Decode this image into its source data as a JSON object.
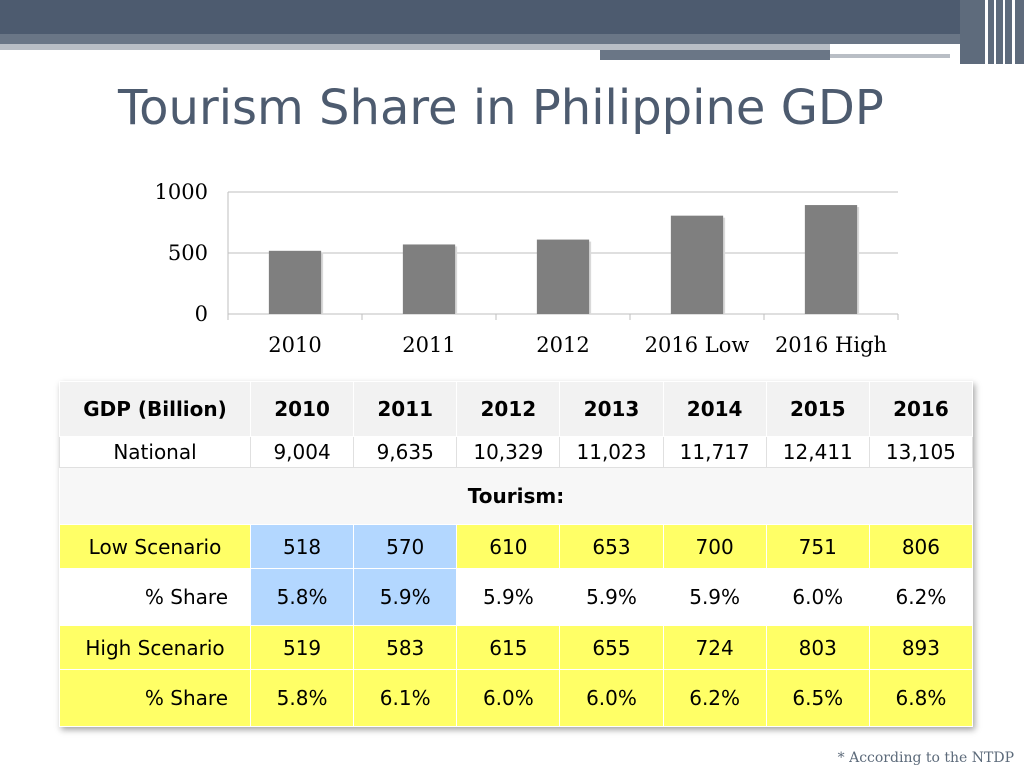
{
  "slide": {
    "title": "Tourism Share in Philippine GDP",
    "footnote": "* According to the NTDP"
  },
  "chart_data": {
    "type": "bar",
    "categories": [
      "2010",
      "2011",
      "2012",
      "2016 Low",
      "2016 High"
    ],
    "values": [
      518,
      570,
      610,
      806,
      893
    ],
    "ylim": [
      0,
      1000
    ],
    "yticks": [
      0,
      500,
      1000
    ],
    "bar_color": "#7f7f7f",
    "grid": true,
    "legend": "none"
  },
  "table": {
    "header": [
      "GDP (Billion)",
      "2010",
      "2011",
      "2012",
      "2013",
      "2014",
      "2015",
      "2016"
    ],
    "national": {
      "label": "National",
      "values": [
        "9,004",
        "9,635",
        "10,329",
        "11,023",
        "11,717",
        "12,411",
        "13,105"
      ]
    },
    "tourism_label": "Tourism:",
    "low": {
      "label": "Low Scenario",
      "values": [
        "518",
        "570",
        "610",
        "653",
        "700",
        "751",
        "806"
      ]
    },
    "low_share": {
      "label": "% Share",
      "values": [
        "5.8%",
        "5.9%",
        "5.9%",
        "5.9%",
        "5.9%",
        "6.0%",
        "6.2%"
      ]
    },
    "high": {
      "label": "High Scenario",
      "values": [
        "519",
        "583",
        "615",
        "655",
        "724",
        "803",
        "893"
      ]
    },
    "high_share": {
      "label": "% Share",
      "values": [
        "5.8%",
        "6.1%",
        "6.0%",
        "6.0%",
        "6.2%",
        "6.5%",
        "6.8%"
      ]
    }
  }
}
